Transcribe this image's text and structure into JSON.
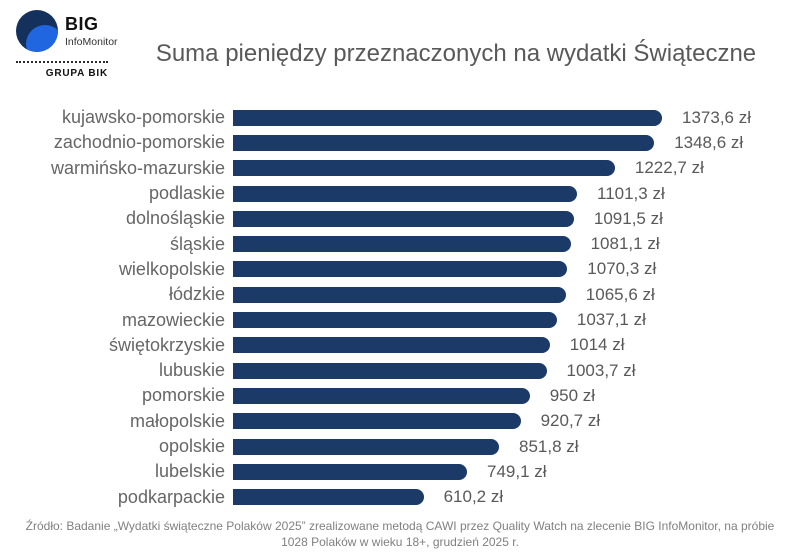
{
  "header": {
    "logo": {
      "big": "BIG",
      "infomonitor": "InfoMonitor",
      "grupa": "GRUPA BIK"
    }
  },
  "colors": {
    "bar": "#1c3a67",
    "logo_navy": "#14315e",
    "logo_blue": "#2066e0",
    "title_gray": "#595959",
    "label_gray": "#666666",
    "footer_gray": "#808080"
  },
  "chart_data": {
    "type": "bar",
    "orientation": "horizontal",
    "title": "Suma pieniędzy przeznaczonych na wydatki Świąteczne",
    "unit": "zł",
    "value_axis_range": [
      0,
      1450
    ],
    "grid": false,
    "legend": false,
    "value_label_position": "end-of-bar",
    "categories": [
      "kujawsko-pomorskie",
      "zachodnio-pomorskie",
      "warmińsko-mazurskie",
      "podlaskie",
      "dolnośląskie",
      "śląskie",
      "wielkopolskie",
      "łódzkie",
      "mazowieckie",
      "świętokrzyskie",
      "lubuskie",
      "pomorskie",
      "małopolskie",
      "opolskie",
      "lubelskie",
      "podkarpackie"
    ],
    "values": [
      1373.6,
      1348.6,
      1222.7,
      1101.3,
      1091.5,
      1081.1,
      1070.3,
      1065.6,
      1037.1,
      1014,
      1003.7,
      950,
      920.7,
      851.8,
      749.1,
      610.2
    ],
    "value_labels": [
      "1373,6 zł",
      "1348,6 zł",
      "1222,7 zł",
      "1101,3 zł",
      "1091,5 zł",
      "1081,1 zł",
      "1070,3 zł",
      "1065,6 zł",
      "1037,1 zł",
      "1014 zł",
      "1003,7 zł",
      "950 zł",
      "920,7 zł",
      "851,8 zł",
      "749,1 zł",
      "610,2 zł"
    ]
  },
  "footer": {
    "source": "Źródło: Badanie „Wydatki świąteczne Polaków 2025” zrealizowane metodą CAWI przez Quality Watch na zlecenie BIG InfoMonitor, na próbie 1028 Polaków w wieku 18+, grudzień 2025 r."
  }
}
